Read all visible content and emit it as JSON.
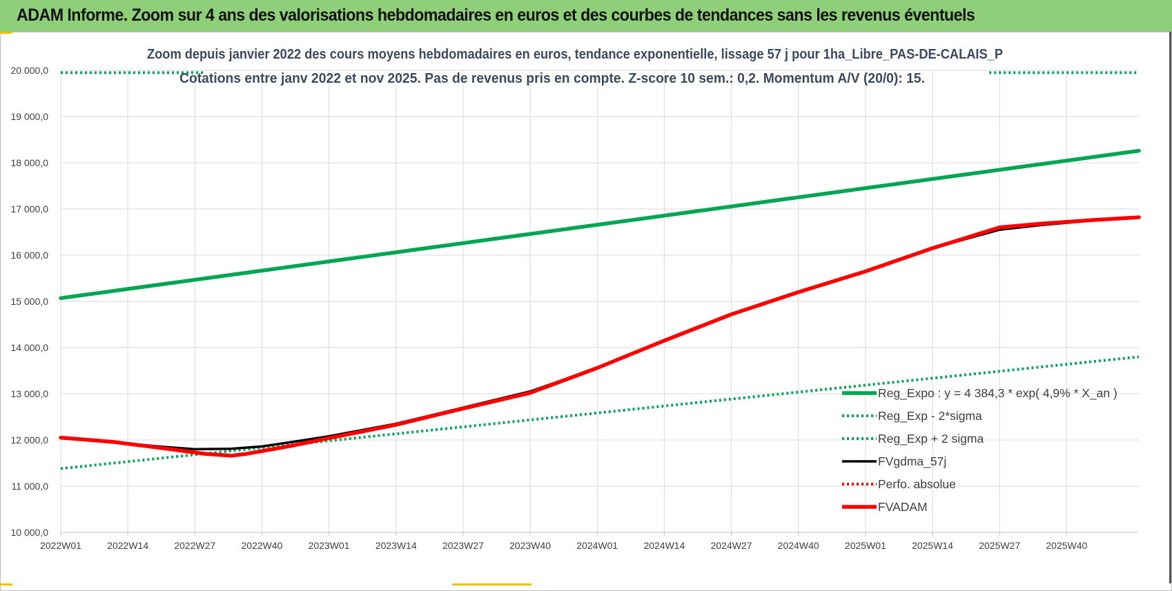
{
  "banner": {
    "title": "ADAM Informe. Zoom sur 4 ans des valorisations hebdomadaires en euros et des courbes de tendances sans les revenus éventuels"
  },
  "colors": {
    "banner_bg": "#8fcf7a",
    "green": "#00a651",
    "red": "#ff0000",
    "black": "#000000",
    "grid": "#d9d9d9"
  },
  "chart_data": {
    "type": "line",
    "title": "Zoom depuis janvier 2022 des cours moyens hebdomadaires en euros, tendance exponentielle, lissage 57 j pour 1ha_Libre_PAS-DE-CALAIS_P",
    "subtitle": "Cotations entre janv 2022 et nov 2025. Pas de revenus pris en compte. Z-score 10 sem.: 0,2. Momentum A/V (20/0): 15.",
    "xlabel": "",
    "ylabel": "",
    "ylim": [
      10000,
      20000
    ],
    "y_ticks": [
      "10 000,0",
      "11 000,0",
      "12 000,0",
      "13 000,0",
      "14 000,0",
      "15 000,0",
      "16 000,0",
      "17 000,0",
      "18 000,0",
      "19 000,0",
      "20 000,0"
    ],
    "x_tick_labels": [
      "2022W01",
      "2022W14",
      "2022W27",
      "2022W40",
      "2023W01",
      "2023W14",
      "2023W27",
      "2023W40",
      "2024W01",
      "2024W14",
      "2024W27",
      "2024W40",
      "2025W01",
      "2025W14",
      "2025W27",
      "2025W40"
    ],
    "x_range_weeks": [
      0,
      209
    ],
    "legend_position": "right",
    "series": [
      {
        "name": "Reg_Expo : y = 4 384,3 * exp( 4,9% *  X_an )",
        "style": "solid-thick",
        "color": "#00a651",
        "points": [
          [
            0,
            15070
          ],
          [
            209,
            18260
          ]
        ]
      },
      {
        "name": "Reg_Exp - 2*sigma",
        "style": "dotted",
        "color": "#00a651",
        "points": [
          [
            0,
            11380
          ],
          [
            209,
            13800
          ]
        ]
      },
      {
        "name": "Reg_Exp + 2 sigma",
        "style": "dotted",
        "color": "#00a651",
        "points": [
          [
            0,
            19950
          ],
          [
            209,
            19950
          ]
        ]
      },
      {
        "name": "FVgdma_57j",
        "style": "solid",
        "color": "#000000",
        "points": [
          [
            0,
            12050
          ],
          [
            10,
            11950
          ],
          [
            20,
            11850
          ],
          [
            26,
            11800
          ],
          [
            33,
            11810
          ],
          [
            39,
            11860
          ],
          [
            45,
            11960
          ],
          [
            52,
            12080
          ],
          [
            65,
            12350
          ],
          [
            78,
            12700
          ],
          [
            91,
            13050
          ],
          [
            104,
            13560
          ],
          [
            117,
            14150
          ],
          [
            130,
            14720
          ],
          [
            143,
            15200
          ],
          [
            156,
            15650
          ],
          [
            169,
            16150
          ],
          [
            182,
            16550
          ],
          [
            190,
            16650
          ],
          [
            200,
            16750
          ],
          [
            209,
            16810
          ]
        ]
      },
      {
        "name": "Perfo. absolue",
        "style": "dotted",
        "color": "#ff0000",
        "points": []
      },
      {
        "name": "FVADAM",
        "style": "solid-thick",
        "color": "#ff0000",
        "points": [
          [
            0,
            12050
          ],
          [
            10,
            11960
          ],
          [
            20,
            11820
          ],
          [
            28,
            11700
          ],
          [
            33,
            11660
          ],
          [
            36,
            11700
          ],
          [
            45,
            11880
          ],
          [
            52,
            12040
          ],
          [
            65,
            12330
          ],
          [
            78,
            12680
          ],
          [
            91,
            13020
          ],
          [
            104,
            13560
          ],
          [
            117,
            14150
          ],
          [
            130,
            14720
          ],
          [
            143,
            15200
          ],
          [
            156,
            15650
          ],
          [
            169,
            16150
          ],
          [
            182,
            16600
          ],
          [
            190,
            16680
          ],
          [
            200,
            16760
          ],
          [
            209,
            16820
          ]
        ]
      }
    ]
  }
}
